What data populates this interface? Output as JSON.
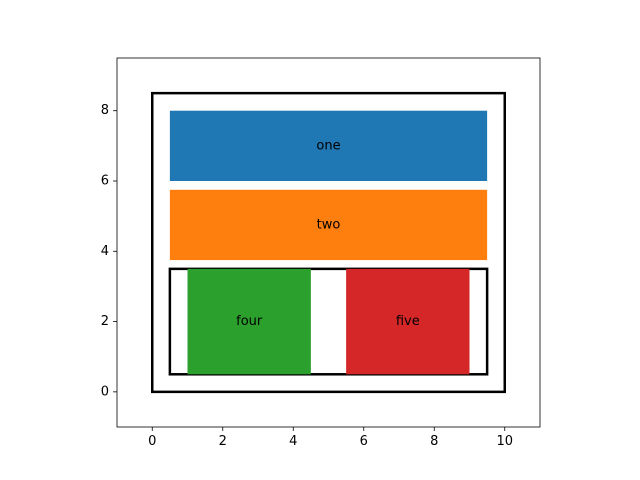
{
  "chart_data": {
    "type": "diagram",
    "title": "",
    "xlabel": "",
    "ylabel": "",
    "xlim": [
      -1,
      11
    ],
    "ylim": [
      -1,
      9.5
    ],
    "xticks": [
      0,
      2,
      4,
      6,
      8,
      10
    ],
    "yticks": [
      0,
      2,
      4,
      6,
      8
    ],
    "grid": false,
    "outlines": [
      {
        "name": "outer-frame",
        "x0": 0,
        "y0": 0,
        "x1": 10,
        "y1": 8.5
      },
      {
        "name": "inner-frame",
        "x0": 0.5,
        "y0": 0.5,
        "x1": 9.5,
        "y1": 3.5
      }
    ],
    "boxes": [
      {
        "label": "one",
        "x0": 0.5,
        "y0": 6.0,
        "x1": 9.5,
        "y1": 8.0,
        "color": "#1f77b4"
      },
      {
        "label": "two",
        "x0": 0.5,
        "y0": 3.75,
        "x1": 9.5,
        "y1": 5.75,
        "color": "#ff7f0e"
      },
      {
        "label": "four",
        "x0": 1.0,
        "y0": 0.5,
        "x1": 4.5,
        "y1": 3.5,
        "color": "#2ca02c"
      },
      {
        "label": "five",
        "x0": 5.5,
        "y0": 0.5,
        "x1": 9.0,
        "y1": 3.5,
        "color": "#d62728"
      }
    ]
  }
}
